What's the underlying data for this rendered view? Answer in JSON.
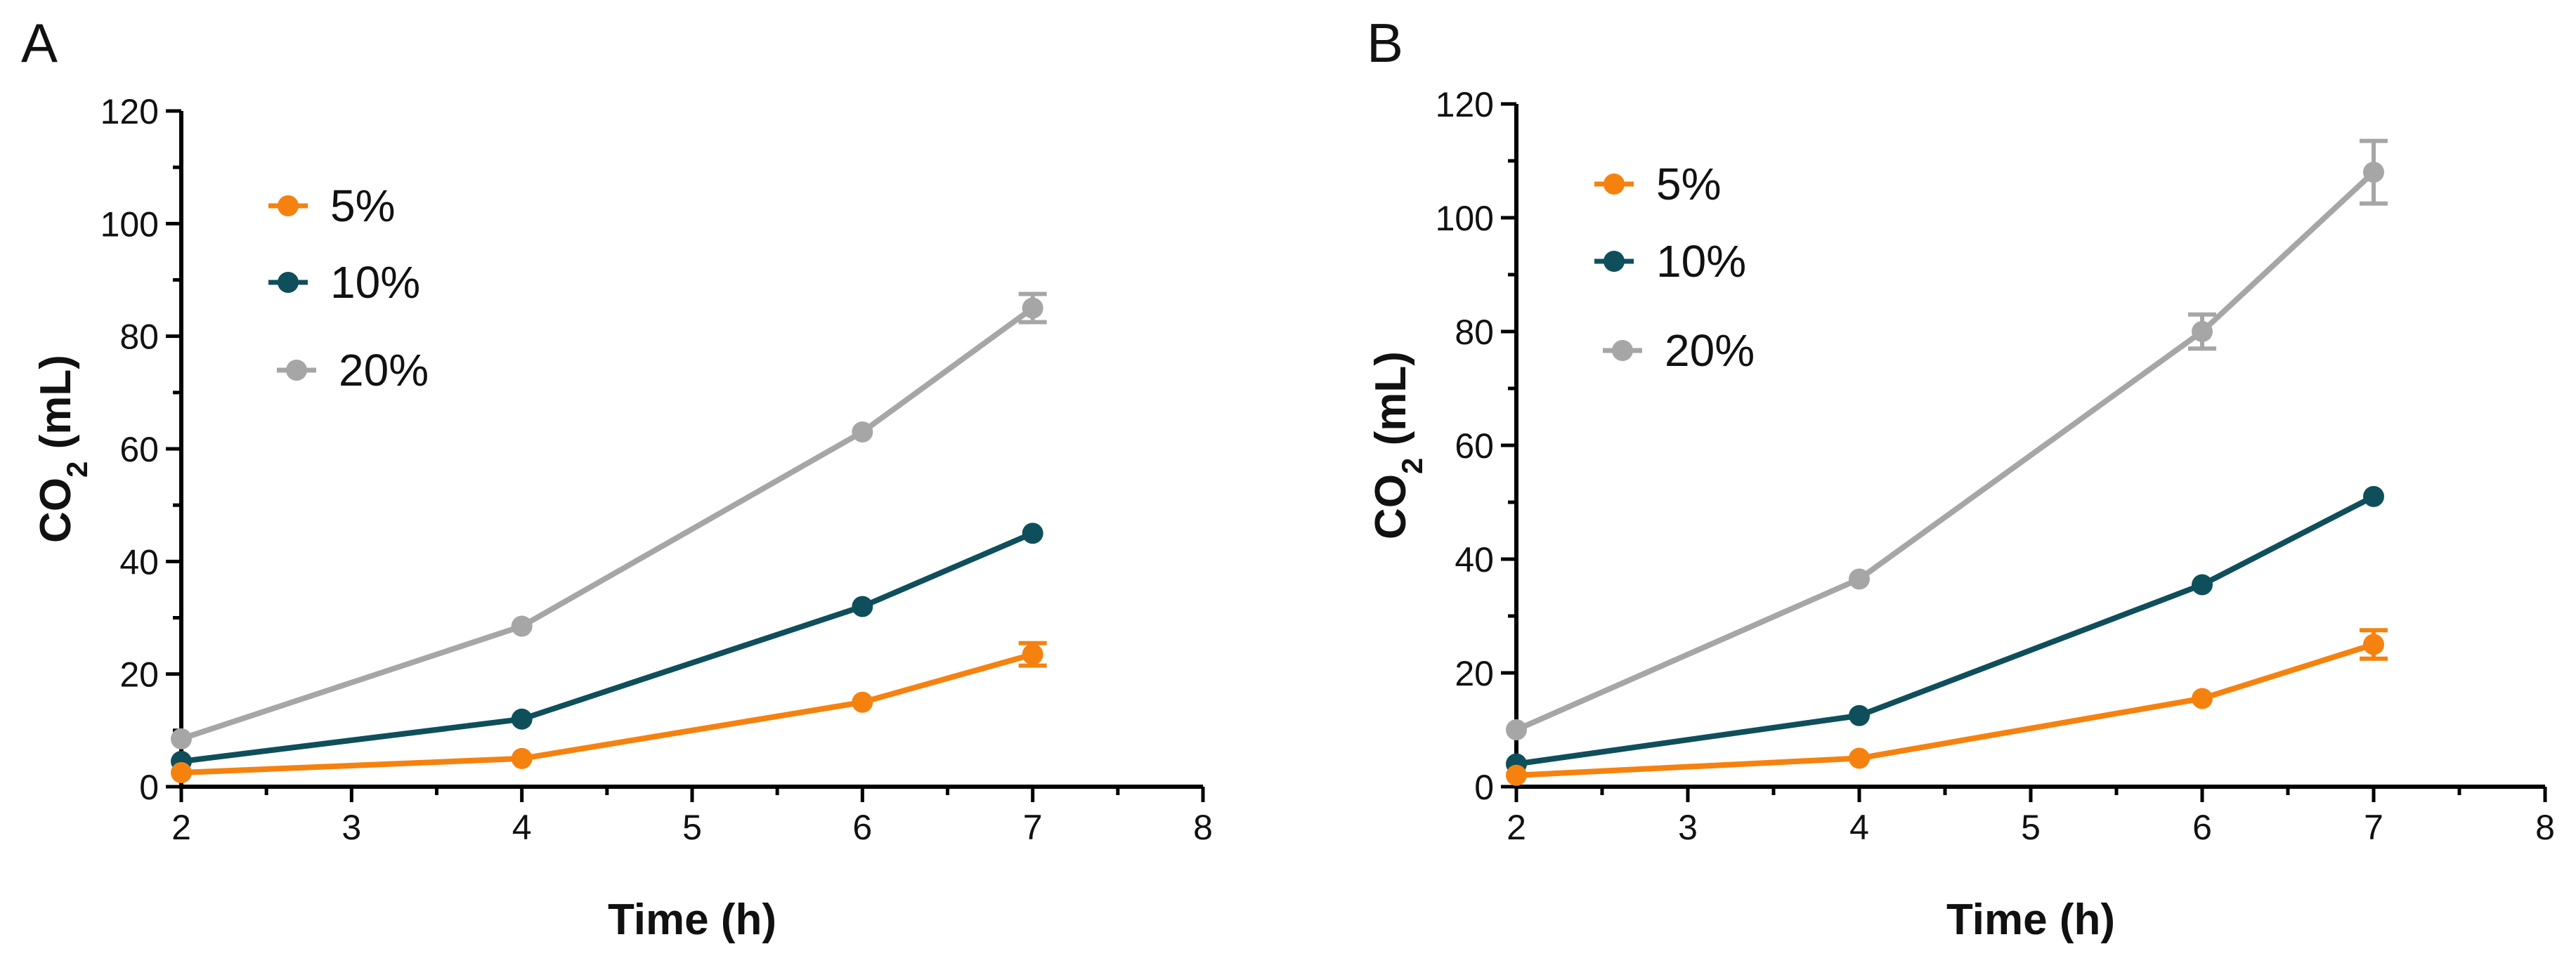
{
  "chart_data": [
    {
      "type": "line",
      "panel_label": "A",
      "xlabel": "Time (h)",
      "ylabel_main": "CO",
      "ylabel_sub": "2",
      "ylabel_unit": " (mL)",
      "xlim": [
        2,
        8
      ],
      "ylim": [
        0,
        120
      ],
      "x_ticks": [
        2,
        3,
        4,
        5,
        6,
        7,
        8
      ],
      "y_ticks": [
        0,
        20,
        40,
        60,
        80,
        100,
        120
      ],
      "grid": false,
      "legend_position": "top-left",
      "series": [
        {
          "name": "5%",
          "color": "#F5820F",
          "x": [
            2,
            4,
            6,
            7
          ],
          "values": [
            2.5,
            5,
            15,
            23.5
          ],
          "errors": [
            0,
            0,
            0,
            2
          ]
        },
        {
          "name": "10%",
          "color": "#0F4F5C",
          "x": [
            2,
            4,
            6,
            7
          ],
          "values": [
            4.5,
            12,
            32,
            45
          ],
          "errors": [
            0,
            0,
            0,
            0
          ]
        },
        {
          "name": "20%",
          "color": "#A6A6A6",
          "x": [
            2,
            4,
            6,
            7
          ],
          "values": [
            8.5,
            28.5,
            63,
            85
          ],
          "errors": [
            0,
            0,
            0,
            2.5
          ]
        }
      ]
    },
    {
      "type": "line",
      "panel_label": "B",
      "xlabel": "Time (h)",
      "ylabel_main": "CO",
      "ylabel_sub": "2",
      "ylabel_unit": " (mL)",
      "xlim": [
        2,
        8
      ],
      "ylim": [
        0,
        120
      ],
      "x_ticks": [
        2,
        3,
        4,
        5,
        6,
        7,
        8
      ],
      "y_ticks": [
        0,
        20,
        40,
        60,
        80,
        100,
        120
      ],
      "grid": false,
      "legend_position": "top-left",
      "series": [
        {
          "name": "5%",
          "color": "#F5820F",
          "x": [
            2,
            4,
            6,
            7
          ],
          "values": [
            2,
            5,
            15.5,
            25
          ],
          "errors": [
            0,
            0,
            0,
            2.5
          ]
        },
        {
          "name": "10%",
          "color": "#0F4F5C",
          "x": [
            2,
            4,
            6,
            7
          ],
          "values": [
            4,
            12.5,
            35.5,
            51
          ],
          "errors": [
            0,
            0,
            0,
            0
          ]
        },
        {
          "name": "20%",
          "color": "#A6A6A6",
          "x": [
            2,
            4,
            6,
            7
          ],
          "values": [
            10,
            36.5,
            80,
            108
          ],
          "errors": [
            0,
            0,
            3,
            5.5
          ]
        }
      ]
    }
  ]
}
